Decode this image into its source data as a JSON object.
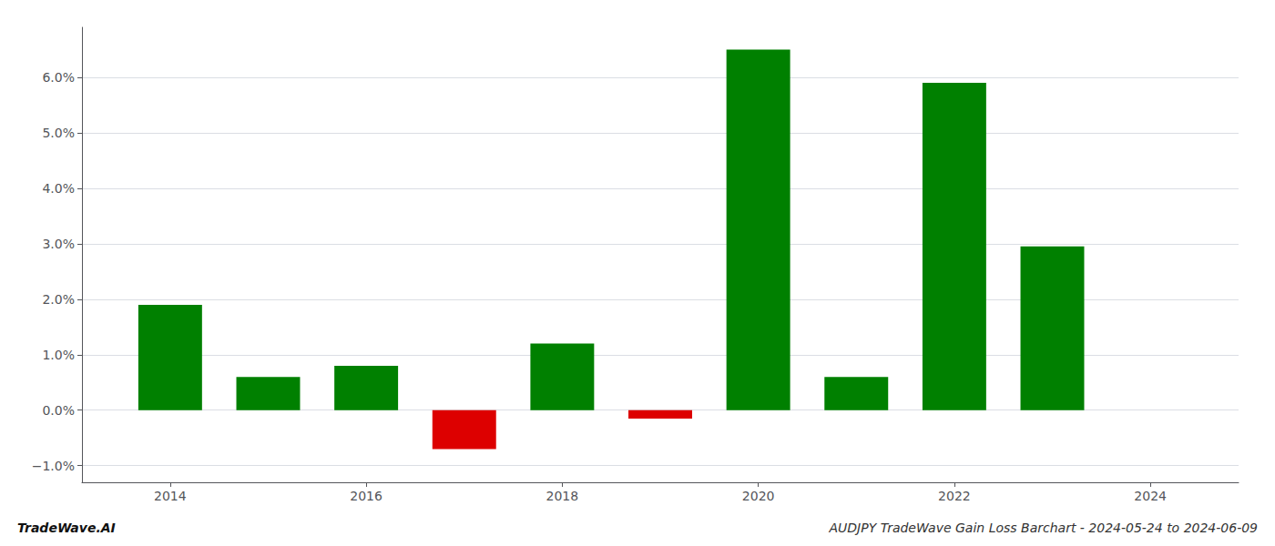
{
  "chart_data": {
    "type": "bar",
    "title": "AUDJPY TradeWave Gain Loss Barchart - 2024-05-24 to 2024-06-09",
    "annotations": [
      "TradeWave.AI"
    ],
    "x": [
      2014,
      2015,
      2016,
      2017,
      2018,
      2019,
      2020,
      2021,
      2022,
      2023
    ],
    "values": [
      0.019,
      0.006,
      0.008,
      -0.007,
      0.012,
      -0.0015,
      0.065,
      0.006,
      0.059,
      0.0295
    ],
    "colors": [
      "#008000",
      "#008000",
      "#008000",
      "#dd0000",
      "#008000",
      "#dd0000",
      "#008000",
      "#008000",
      "#008000",
      "#008000"
    ],
    "xlim": [
      2013.1,
      2024.9
    ],
    "xticks": [
      2014,
      2016,
      2018,
      2020,
      2022,
      2024
    ],
    "ylim": [
      -0.013,
      0.069
    ],
    "yticks": [
      {
        "value": -0.01,
        "label": "−1.0%"
      },
      {
        "value": 0.0,
        "label": "0.0%"
      },
      {
        "value": 0.01,
        "label": "1.0%"
      },
      {
        "value": 0.02,
        "label": "2.0%"
      },
      {
        "value": 0.03,
        "label": "3.0%"
      },
      {
        "value": 0.04,
        "label": "4.0%"
      },
      {
        "value": 0.05,
        "label": "5.0%"
      },
      {
        "value": 0.06,
        "label": "6.0%"
      }
    ],
    "grid": true
  }
}
